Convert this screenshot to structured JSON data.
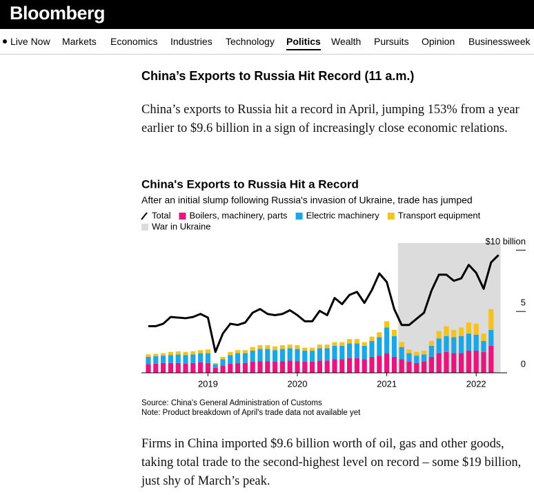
{
  "header": {
    "logo": "Bloomberg"
  },
  "nav": {
    "items": [
      "Live Now",
      "Markets",
      "Economics",
      "Industries",
      "Technology",
      "Politics",
      "Wealth",
      "Pursuits",
      "Opinion",
      "Businessweek"
    ],
    "active": "Politics"
  },
  "article": {
    "heading": "China’s Exports to Russia Hit Record (11 a.m.)",
    "paragraphs": [
      "China’s exports to Russia hit a record in April, jumping 153% from a year earlier to $9.6 billion in a sign of increasingly close economic relations.",
      "Firms in China imported $9.6 billion worth of oil, gas and other goods, taking total trade to the second-highest level on record – some $19 billion, just shy of March’s peak."
    ]
  },
  "chart_data": {
    "type": "combo",
    "title": "China's Exports to Russia Hit a Record",
    "subtitle": "After an initial slump following Russia's invasion of Ukraine, trade has jumped",
    "categories": [
      null,
      null,
      null,
      null,
      null,
      null,
      null,
      null,
      "2019",
      null,
      null,
      null,
      null,
      null,
      null,
      null,
      null,
      null,
      null,
      null,
      "2020",
      null,
      null,
      null,
      null,
      null,
      null,
      null,
      null,
      null,
      null,
      null,
      "2021",
      null,
      null,
      null,
      null,
      null,
      null,
      null,
      null,
      null,
      null,
      null,
      "2022",
      null,
      null,
      null
    ],
    "series": [
      {
        "name": "Total",
        "type": "line",
        "color": "#000000",
        "values": [
          3.8,
          3.8,
          4.0,
          4.55,
          4.5,
          4.45,
          4.55,
          4.8,
          4.5,
          1.7,
          3.2,
          4.0,
          3.9,
          4.1,
          4.9,
          5.2,
          4.8,
          4.7,
          4.8,
          5.1,
          4.7,
          4.2,
          4.2,
          5.05,
          4.7,
          6.1,
          5.6,
          6.35,
          6.6,
          5.7,
          6.75,
          8.1,
          7.4,
          5.2,
          3.9,
          3.9,
          4.4,
          4.9,
          6.7,
          8.0,
          8.0,
          7.5,
          7.7,
          8.8,
          8.15,
          6.85,
          9.0,
          9.6
        ]
      },
      {
        "name": "Boilers, machinery, parts",
        "type": "bar",
        "color": "#e8157f",
        "values": [
          0.7,
          0.75,
          0.8,
          0.8,
          0.8,
          0.75,
          0.8,
          0.85,
          0.8,
          0.4,
          0.6,
          0.75,
          0.8,
          0.8,
          0.9,
          0.95,
          0.95,
          0.9,
          0.95,
          1.0,
          0.95,
          0.9,
          0.9,
          1.0,
          1.0,
          1.1,
          1.1,
          1.2,
          1.2,
          1.1,
          1.3,
          1.4,
          1.6,
          1.3,
          1.1,
          0.9,
          0.8,
          0.9,
          1.3,
          1.6,
          1.7,
          1.6,
          1.6,
          1.8,
          1.8,
          1.7,
          2.2,
          null
        ]
      },
      {
        "name": "Electric machinery",
        "type": "bar",
        "color": "#1ba6e6",
        "values": [
          0.6,
          0.6,
          0.6,
          0.65,
          0.7,
          0.7,
          0.7,
          0.75,
          0.8,
          0.3,
          0.5,
          0.7,
          0.8,
          0.8,
          0.9,
          1.0,
          1.0,
          0.95,
          1.0,
          1.0,
          1.0,
          0.9,
          0.9,
          1.0,
          1.0,
          1.1,
          1.1,
          1.2,
          1.2,
          1.1,
          1.3,
          1.5,
          2.1,
          1.7,
          1.0,
          0.7,
          0.6,
          0.6,
          0.9,
          1.2,
          1.3,
          1.3,
          1.4,
          1.4,
          1.3,
          0.9,
          1.3,
          null
        ]
      },
      {
        "name": "Transport equipment",
        "type": "bar",
        "color": "#f5c31c",
        "values": [
          0.2,
          0.2,
          0.2,
          0.25,
          0.25,
          0.25,
          0.25,
          0.25,
          0.3,
          0.1,
          0.2,
          0.25,
          0.25,
          0.25,
          0.3,
          0.3,
          0.3,
          0.3,
          0.3,
          0.3,
          0.3,
          0.25,
          0.25,
          0.3,
          0.3,
          0.3,
          0.3,
          0.35,
          0.35,
          0.3,
          0.35,
          0.4,
          0.5,
          0.5,
          0.4,
          0.3,
          0.3,
          0.3,
          0.4,
          0.6,
          0.8,
          0.6,
          0.7,
          0.9,
          0.9,
          0.6,
          1.7,
          null
        ]
      }
    ],
    "shaded_label": "War in Ukraine",
    "shaded_color": "#dcdcdc",
    "ylim": [
      0,
      10.3
    ],
    "yticks": [
      0,
      5,
      {
        "value": 10,
        "label": "$10 billion"
      }
    ],
    "source": "Source: China's General Administration of Customs",
    "note": "Note: Product breakdown of April's trade data not available yet"
  }
}
